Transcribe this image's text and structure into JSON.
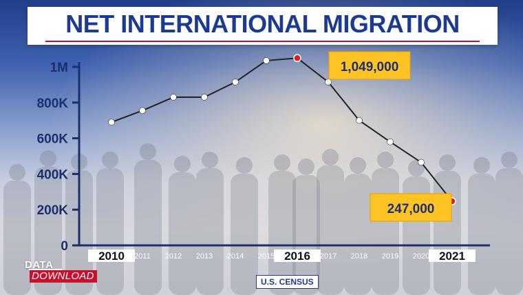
{
  "title": "NET INTERNATIONAL MIGRATION",
  "source": "U.S. CENSUS",
  "logo": {
    "top": "DATA",
    "bottom": "DOWNLOAD"
  },
  "colors": {
    "title": "#1b3a93",
    "accent_red": "#c8102e",
    "callout": "#ffc324",
    "line": "#222222",
    "marker": "#ffffff",
    "highlight_marker": "#e11d1d"
  },
  "chart_data": {
    "type": "line",
    "title": "NET INTERNATIONAL MIGRATION",
    "xlabel": "",
    "ylabel": "",
    "x": [
      2010,
      2011,
      2012,
      2013,
      2014,
      2015,
      2016,
      2017,
      2018,
      2019,
      2020,
      2021
    ],
    "x_tick_labels": [
      "2010",
      "2011",
      "2012",
      "2013",
      "2014",
      "2015",
      "2016",
      "2017",
      "2018",
      "2019",
      "2020",
      "2021"
    ],
    "emphasized_x_ticks": [
      "2010",
      "2016",
      "2021"
    ],
    "series": [
      {
        "values": [
          690000,
          755000,
          830000,
          830000,
          915000,
          1035000,
          1049000,
          915000,
          700000,
          580000,
          465000,
          247000
        ]
      }
    ],
    "ylim": [
      0,
      1000000
    ],
    "y_ticks": [
      0,
      200000,
      400000,
      600000,
      800000,
      1000000
    ],
    "y_tick_labels": [
      "0",
      "200K",
      "400K",
      "600K",
      "800K",
      "1M"
    ],
    "annotations": [
      {
        "x": 2016,
        "value": 1049000,
        "text": "1,049,000"
      },
      {
        "x": 2021,
        "value": 247000,
        "text": "247,000"
      }
    ],
    "grid": false,
    "legend": "none"
  }
}
